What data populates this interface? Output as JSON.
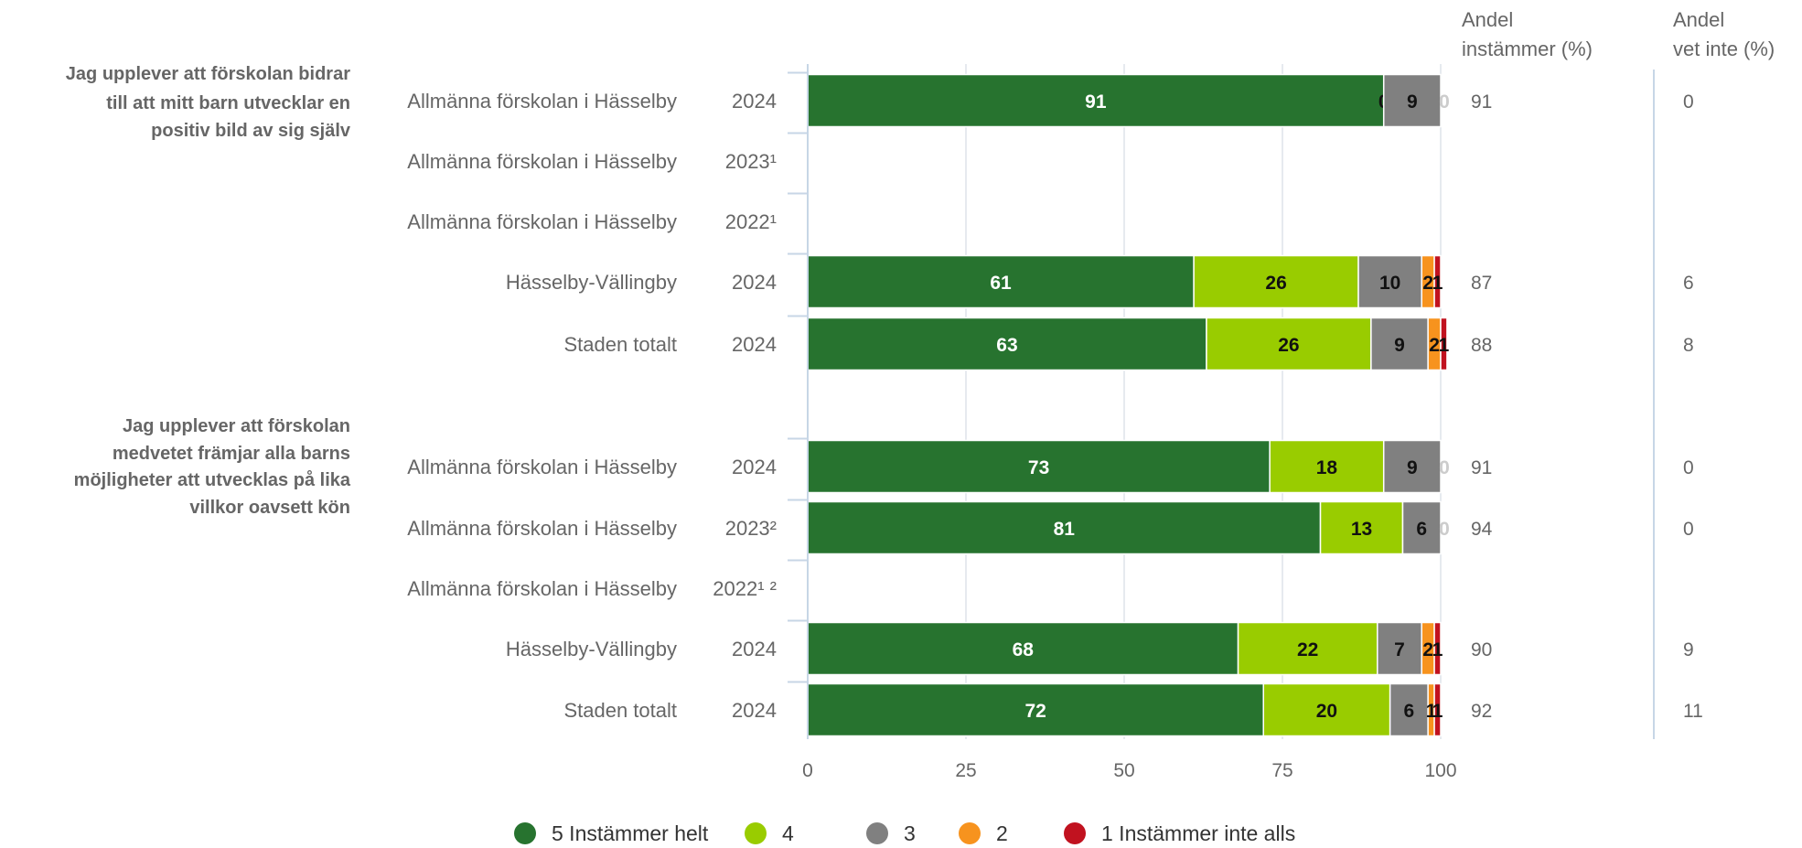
{
  "header": {
    "share_agree": [
      "Andel",
      "instämmer (%)"
    ],
    "share_dont_know": [
      "Andel",
      "vet inte (%)"
    ]
  },
  "chart_data": {
    "type": "bar",
    "orientation": "horizontal",
    "stacked": true,
    "xlim": [
      0,
      100
    ],
    "xticks": [
      "0",
      "25",
      "50",
      "75",
      "100"
    ],
    "grid": true,
    "legend_position": "bottom",
    "series": [
      {
        "name": "5 Instämmer helt",
        "color": "#27732f"
      },
      {
        "name": "4",
        "color": "#99cc00"
      },
      {
        "name": "3",
        "color": "#808080"
      },
      {
        "name": "2",
        "color": "#f7931e"
      },
      {
        "name": "1 Instämmer inte alls",
        "color": "#c1121f"
      }
    ],
    "groups": [
      {
        "question": [
          "Jag upplever att förskolan bidrar",
          "till att mitt barn utvecklar en",
          "positiv bild av sig själv"
        ],
        "rows": [
          {
            "unit": "Allmänna förskolan i Hässelby",
            "year": "2024",
            "values": [
              91,
              0,
              9,
              0,
              0
            ],
            "labels": [
              "91",
              "0",
              "9",
              "0",
              ""
            ],
            "share_agree": "91",
            "share_dont_know": "0"
          },
          {
            "unit": "Allmänna förskolan i Hässelby",
            "year": "2023¹",
            "values": null,
            "labels": [],
            "share_agree": "",
            "share_dont_know": ""
          },
          {
            "unit": "Allmänna förskolan i Hässelby",
            "year": "2022¹",
            "values": null,
            "labels": [],
            "share_agree": "",
            "share_dont_know": ""
          },
          {
            "unit": "Hässelby-Vällingby",
            "year": "2024",
            "values": [
              61,
              26,
              10,
              2,
              1
            ],
            "labels": [
              "61",
              "26",
              "10",
              "2",
              "1"
            ],
            "share_agree": "87",
            "share_dont_know": "6"
          },
          {
            "unit": "Staden totalt",
            "year": "2024",
            "values": [
              63,
              26,
              9,
              2,
              1
            ],
            "labels": [
              "63",
              "26",
              "9",
              "2",
              "1"
            ],
            "share_agree": "88",
            "share_dont_know": "8"
          }
        ]
      },
      {
        "question": [
          "Jag upplever att förskolan",
          "medvetet främjar alla barns",
          "möjligheter att utvecklas på lika",
          "villkor oavsett kön"
        ],
        "rows": [
          {
            "unit": "Allmänna förskolan i Hässelby",
            "year": "2024",
            "values": [
              73,
              18,
              9,
              0,
              0
            ],
            "labels": [
              "73",
              "18",
              "9",
              "0",
              ""
            ],
            "share_agree": "91",
            "share_dont_know": "0"
          },
          {
            "unit": "Allmänna förskolan i Hässelby",
            "year": "2023²",
            "values": [
              81,
              13,
              6,
              0,
              0
            ],
            "labels": [
              "81",
              "13",
              "6",
              "0",
              ""
            ],
            "share_agree": "94",
            "share_dont_know": "0"
          },
          {
            "unit": "Allmänna förskolan i Hässelby",
            "year": "2022¹ ²",
            "values": null,
            "labels": [],
            "share_agree": "",
            "share_dont_know": ""
          },
          {
            "unit": "Hässelby-Vällingby",
            "year": "2024",
            "values": [
              68,
              22,
              7,
              2,
              1
            ],
            "labels": [
              "68",
              "22",
              "7",
              "2",
              "1"
            ],
            "share_agree": "90",
            "share_dont_know": "9"
          },
          {
            "unit": "Staden totalt",
            "year": "2024",
            "values": [
              72,
              20,
              6,
              1,
              1
            ],
            "labels": [
              "72",
              "20",
              "6",
              "1",
              "1"
            ],
            "share_agree": "92",
            "share_dont_know": "11"
          }
        ]
      }
    ]
  }
}
